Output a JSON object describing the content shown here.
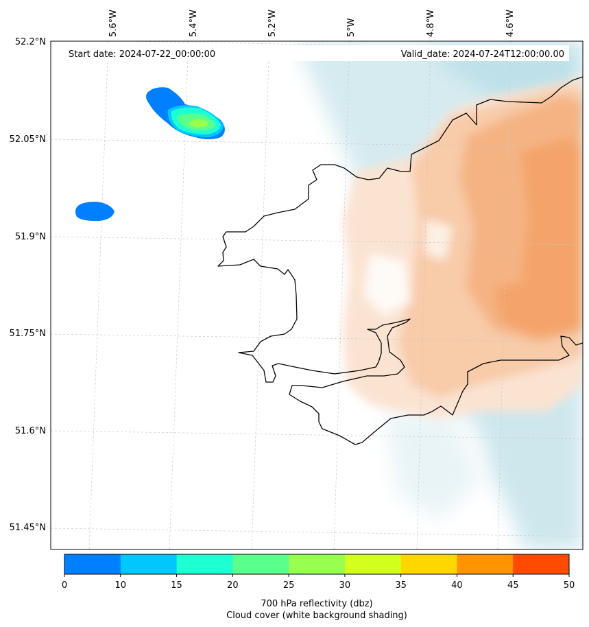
{
  "header": {
    "start_date": "Start date: 2024-07-22_00:00:00",
    "valid_date": "Valid_date: 2024-07-24T12:00:00.00"
  },
  "axes": {
    "longitude_labels": [
      "5.6°W",
      "5.4°W",
      "5.2°W",
      "5°W",
      "4.8°W",
      "4.6°W"
    ],
    "latitude_labels": [
      "52.2°N",
      "52.05°N",
      "51.9°N",
      "51.75°N",
      "51.6°N",
      "51.45°N"
    ]
  },
  "colorbar": {
    "ticks": [
      "0",
      "10",
      "15",
      "20",
      "25",
      "30",
      "35",
      "40",
      "45",
      "50"
    ],
    "colors": [
      "#0080ff",
      "#00c8ff",
      "#1effd2",
      "#5aff8c",
      "#96ff50",
      "#d2ff1e",
      "#ffd700",
      "#ff9400",
      "#ff4a00"
    ],
    "label_line1": "700 hPa reflectivity (dbz)",
    "label_line2": "Cloud cover (white background shading)"
  },
  "colors": {
    "cloud_blue": "#b3dce6",
    "warm_orange": "#f4a46a",
    "coast": "#000000",
    "grid": "#c8c8c8"
  }
}
